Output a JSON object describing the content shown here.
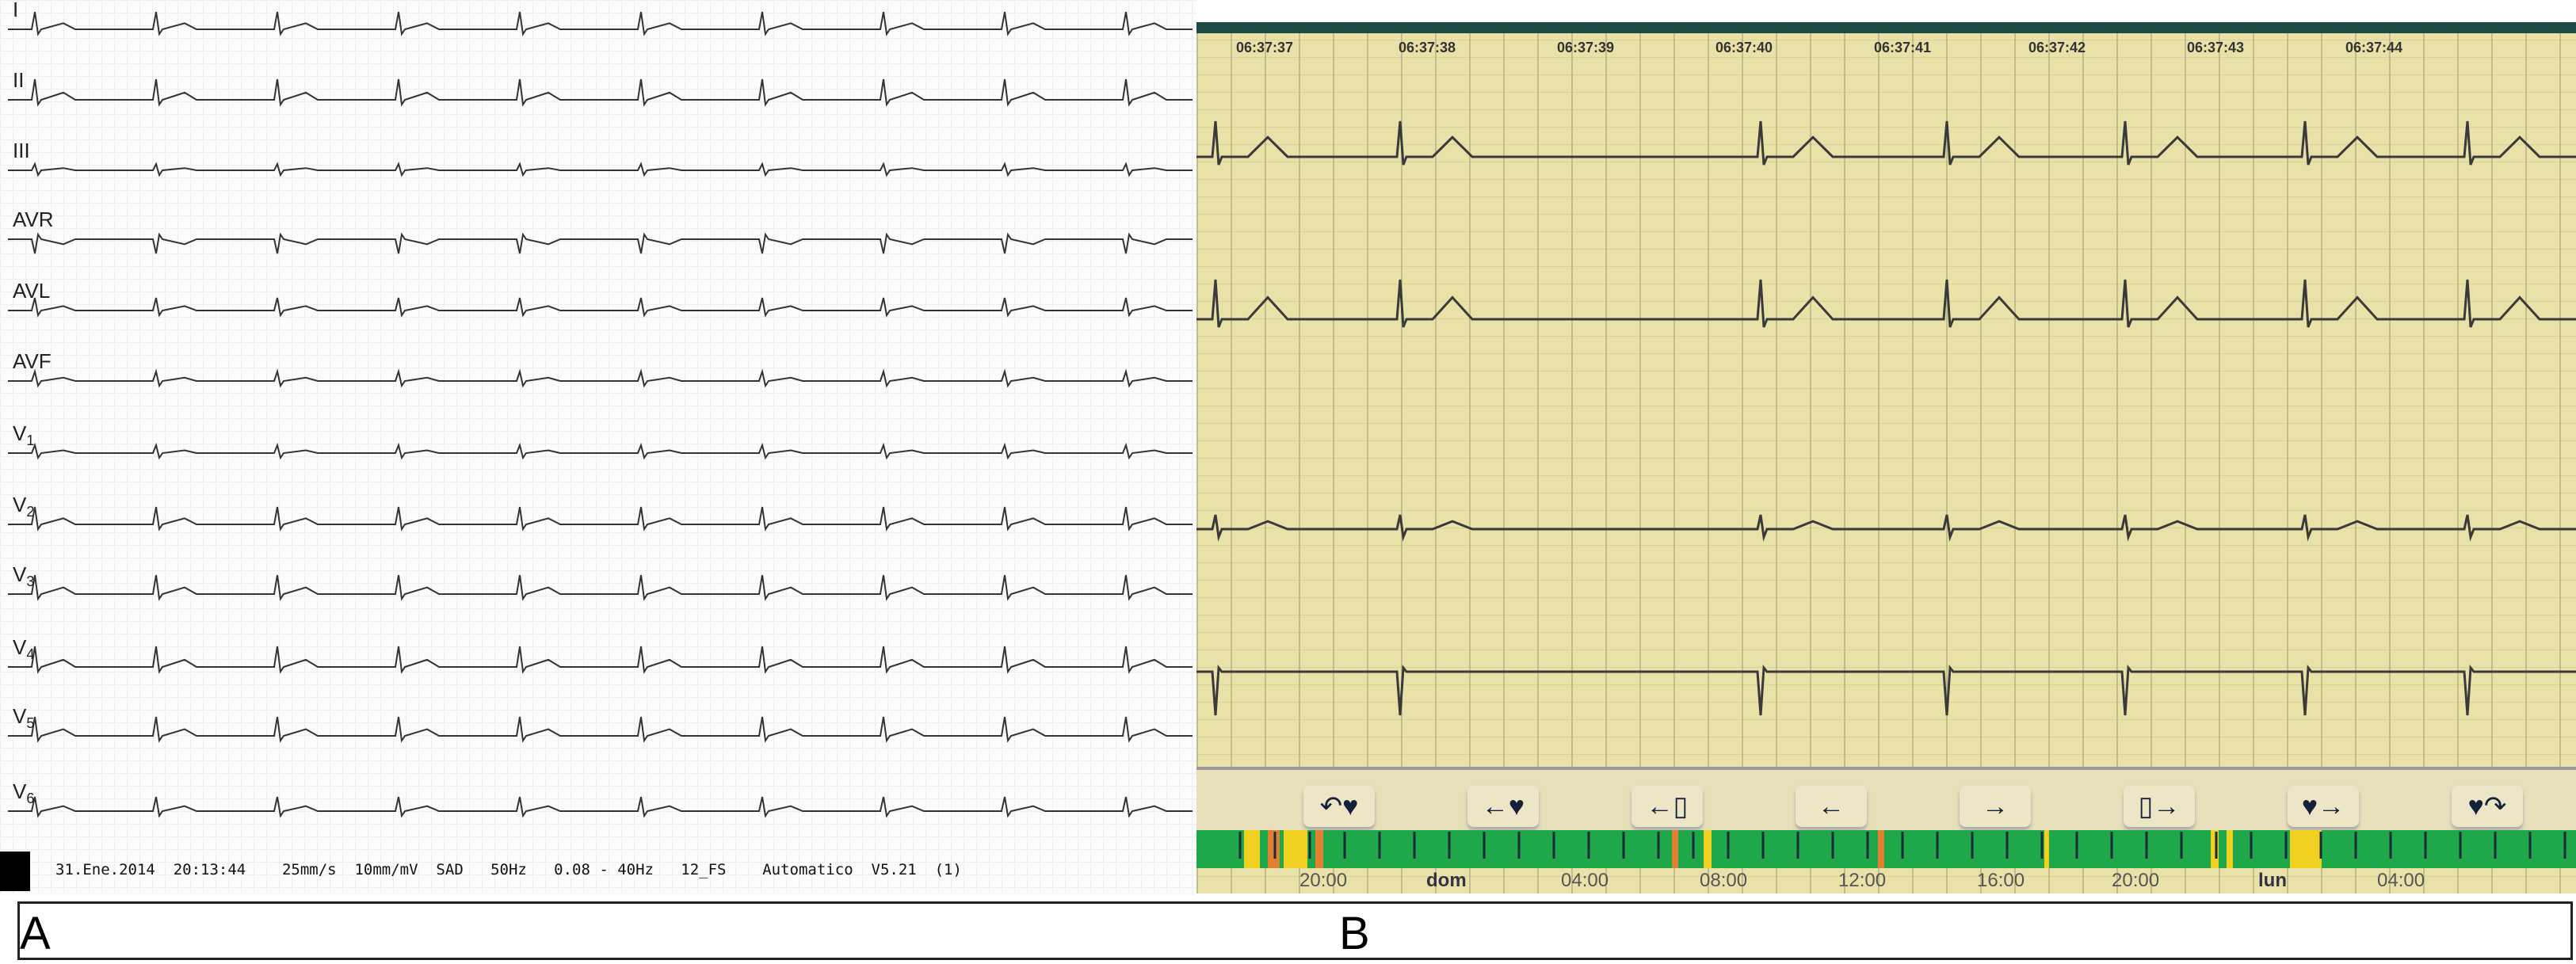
{
  "panel_a": {
    "label": "A",
    "leads": [
      "I",
      "II",
      "III",
      "AVR",
      "AVL",
      "AVF",
      "V1",
      "V2",
      "V3",
      "V4",
      "V5",
      "V6"
    ],
    "footer": "31.Ene.2014  20:13:44    25mm/s  10mm/mV  SAD   50Hz   0.08 - 40Hz   12_FS    Automatico  V5.21  (1)"
  },
  "panel_b": {
    "label": "B",
    "timestamps": [
      "06:37:37",
      "06:37:38",
      "06:37:39",
      "06:37:40",
      "06:37:41",
      "06:37:42",
      "06:37:43",
      "06:37:44"
    ],
    "buttons": [
      {
        "icon": "back-to-previous-beat-icon",
        "glyph": "↶♥"
      },
      {
        "icon": "previous-beat-icon",
        "glyph": "←♥"
      },
      {
        "icon": "previous-page-icon",
        "glyph": "←▯"
      },
      {
        "icon": "arrow-left-icon",
        "glyph": "←"
      },
      {
        "icon": "arrow-right-icon",
        "glyph": "→"
      },
      {
        "icon": "next-page-icon",
        "glyph": "▯→"
      },
      {
        "icon": "next-beat-icon",
        "glyph": "♥→"
      },
      {
        "icon": "forward-to-next-beat-icon",
        "glyph": "♥↷"
      }
    ],
    "timeline_labels": [
      "20:00",
      "dom",
      "04:00",
      "08:00",
      "12:00",
      "16:00",
      "20:00",
      "lun",
      "04:00"
    ],
    "colors": {
      "normal": "#1ea84a",
      "warning": "#f0d020",
      "alert": "#e08030",
      "screen": "#e9e2a8"
    }
  }
}
